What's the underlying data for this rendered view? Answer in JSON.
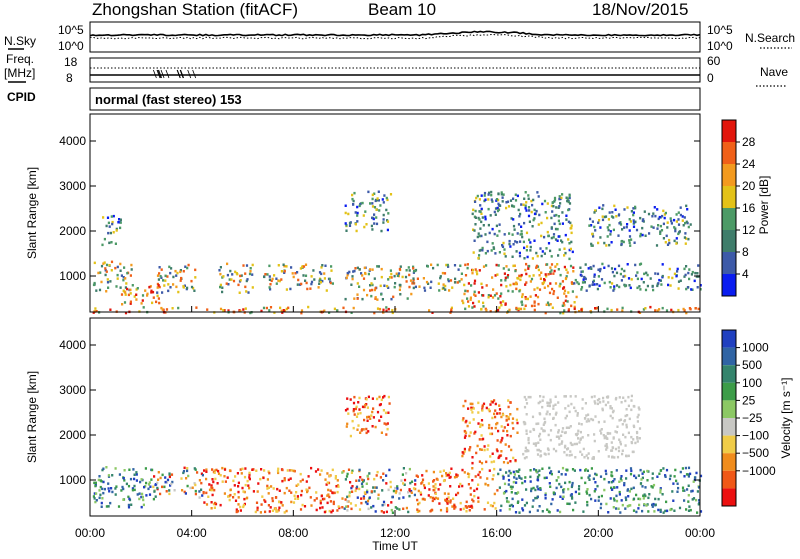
{
  "header": {
    "station": "Zhongshan Station (fitACF)",
    "beam": "Beam 10",
    "date": "18/Nov/2015"
  },
  "strip_labels": {
    "nsky": "N.Sky",
    "nsky_top": "10^5",
    "nsky_bottom": "10^0",
    "nsearch": "N.Search",
    "nsearch_top": "10^5",
    "nsearch_bottom": "10^0",
    "freq_line1": "Freq.",
    "freq_line2": "[MHz]",
    "freq_top": "18",
    "freq_bottom": "8",
    "nave": "Nave",
    "nave_top": "60",
    "nave_bottom": "0",
    "cpid": "CPID",
    "mode": "normal (fast stereo) 153"
  },
  "colors": {
    "power_scale": [
      "#0a1df0",
      "#3d5aa8",
      "#3f7d6b",
      "#4c9a66",
      "#e3c218",
      "#f39a1e",
      "#f06018",
      "#e2160c"
    ],
    "velocity_scale": [
      "#ec1010",
      "#f05818",
      "#f08c1c",
      "#f0cc48",
      "#c8c8c4",
      "#8cc864",
      "#3c9c48",
      "#34846c",
      "#3064a4",
      "#2040c0"
    ]
  },
  "chart_data": [
    {
      "type": "heatmap",
      "name": "power",
      "xlabel": "Time UT",
      "ylabel": "Slant Range [km]",
      "x_ticks": [
        "00:00",
        "04:00",
        "08:00",
        "12:00",
        "16:00",
        "20:00",
        "00:00"
      ],
      "y_ticks": [
        1000,
        2000,
        3000,
        4000
      ],
      "ylim": [
        200,
        4600
      ],
      "colorbar": {
        "label": "Power [dB]",
        "ticks": [
          4,
          8,
          12,
          16,
          20,
          24,
          28
        ],
        "range": [
          0,
          32
        ]
      },
      "regions": [
        {
          "t0": 0.0,
          "t1": 24.0,
          "r0": 200,
          "r1": 340,
          "level": "high"
        },
        {
          "t0": 0.1,
          "t1": 1.6,
          "r0": 600,
          "r1": 1350,
          "level": "mid"
        },
        {
          "t0": 1.2,
          "t1": 2.8,
          "r0": 400,
          "r1": 900,
          "level": "high"
        },
        {
          "t0": 2.6,
          "t1": 4.2,
          "r0": 650,
          "r1": 1300,
          "level": "mid"
        },
        {
          "t0": 5.0,
          "t1": 6.4,
          "r0": 650,
          "r1": 1300,
          "level": "mid"
        },
        {
          "t0": 6.8,
          "t1": 9.6,
          "r0": 700,
          "r1": 1300,
          "level": "mid"
        },
        {
          "t0": 10.0,
          "t1": 12.6,
          "r0": 500,
          "r1": 1250,
          "level": "mid"
        },
        {
          "t0": 12.4,
          "t1": 14.6,
          "r0": 700,
          "r1": 1300,
          "level": "mid"
        },
        {
          "t0": 14.6,
          "t1": 19.2,
          "r0": 350,
          "r1": 1300,
          "level": "high"
        },
        {
          "t0": 15.0,
          "t1": 19.0,
          "r0": 1400,
          "r1": 2900,
          "level": "low"
        },
        {
          "t0": 19.0,
          "t1": 24.0,
          "r0": 700,
          "r1": 1300,
          "level": "low"
        },
        {
          "t0": 10.0,
          "t1": 11.8,
          "r0": 2000,
          "r1": 2900,
          "level": "low"
        },
        {
          "t0": 19.6,
          "t1": 23.6,
          "r0": 1700,
          "r1": 2600,
          "level": "low"
        },
        {
          "t0": 0.4,
          "t1": 1.2,
          "r0": 1700,
          "r1": 2400,
          "level": "low"
        }
      ]
    },
    {
      "type": "heatmap",
      "name": "velocity",
      "xlabel": "Time UT",
      "ylabel": "Slant Range [km]",
      "x_ticks": [
        "00:00",
        "04:00",
        "08:00",
        "12:00",
        "16:00",
        "20:00",
        "00:00"
      ],
      "y_ticks": [
        1000,
        2000,
        3000,
        4000
      ],
      "ylim": [
        200,
        4600
      ],
      "colorbar": {
        "label": "Velocity [m s⁻¹]",
        "ticks": [
          "1000",
          "500",
          "100",
          "25",
          "−25",
          "−100",
          "−500",
          "−1000"
        ]
      },
      "regions": [
        {
          "t0": 0.1,
          "t1": 2.4,
          "r0": 400,
          "r1": 1350,
          "sign": "positive"
        },
        {
          "t0": 2.4,
          "t1": 4.4,
          "r0": 600,
          "r1": 1300,
          "sign": "mixed"
        },
        {
          "t0": 4.4,
          "t1": 9.8,
          "r0": 300,
          "r1": 1300,
          "sign": "negative"
        },
        {
          "t0": 9.8,
          "t1": 12.8,
          "r0": 300,
          "r1": 1300,
          "sign": "mixed"
        },
        {
          "t0": 12.8,
          "t1": 16.0,
          "r0": 300,
          "r1": 1300,
          "sign": "negative"
        },
        {
          "t0": 16.0,
          "t1": 19.6,
          "r0": 300,
          "r1": 1300,
          "sign": "positive"
        },
        {
          "t0": 19.6,
          "t1": 24.0,
          "r0": 300,
          "r1": 1300,
          "sign": "positive"
        },
        {
          "t0": 17.0,
          "t1": 21.6,
          "r0": 1500,
          "r1": 2900,
          "sign": "zero"
        },
        {
          "t0": 10.0,
          "t1": 11.8,
          "r0": 2000,
          "r1": 2900,
          "sign": "negative"
        },
        {
          "t0": 14.6,
          "t1": 16.8,
          "r0": 1400,
          "r1": 2800,
          "sign": "negative"
        }
      ]
    }
  ]
}
